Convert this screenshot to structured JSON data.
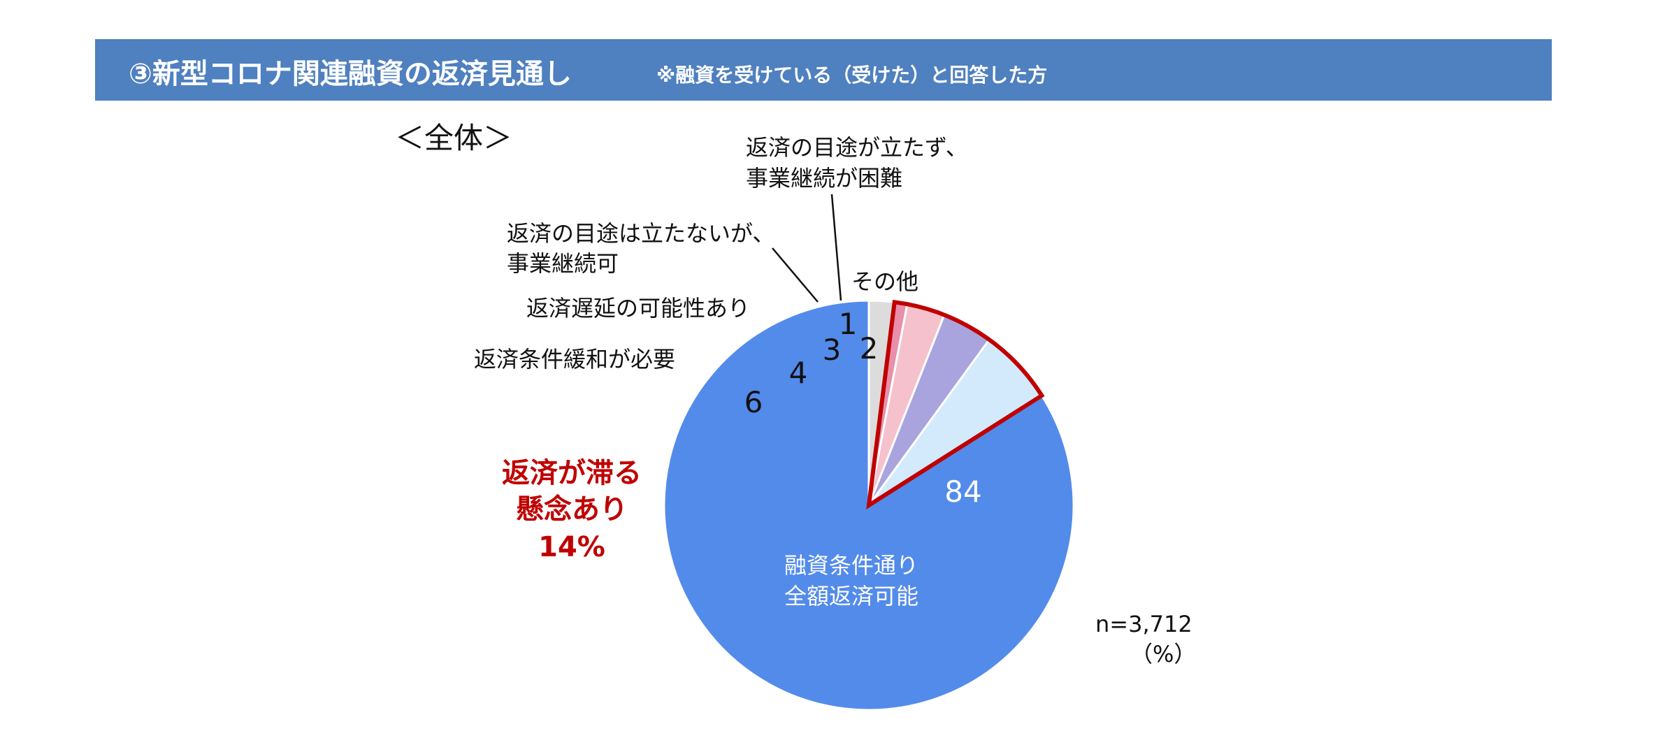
{
  "header": {
    "title": "③新型コロナ関連融資の返済見通し",
    "note": "※融資を受けている（受けた）と回答した方",
    "bg_color": "#4f80bf"
  },
  "chart_data": {
    "type": "pie",
    "subtitle": "＜全体＞",
    "unit": "（%）",
    "sample_size": "n=3,712",
    "slices": [
      {
        "label_lines": [
          "融資条件通り",
          "全額返済可能"
        ],
        "value": 84,
        "color": "#538bea"
      },
      {
        "label_lines": [
          "返済条件緩和が必要"
        ],
        "value": 6,
        "color": "#d2eafc"
      },
      {
        "label_lines": [
          "返済遅延の可能性あり"
        ],
        "value": 4,
        "color": "#a9a4de"
      },
      {
        "label_lines": [
          "返済の目途は立たないが、",
          "事業継続可"
        ],
        "value": 3,
        "color": "#f5c1cd"
      },
      {
        "label_lines": [
          "返済の目途が立たず、",
          "事業継続が困難"
        ],
        "value": 1,
        "color": "#e88faa"
      },
      {
        "label_lines": [
          "その他"
        ],
        "value": 2,
        "color": "#dcdcdc"
      }
    ],
    "highlight": {
      "label_lines": [
        "返済が滞る",
        "懸念あり",
        "14%"
      ],
      "color": "#c00000"
    }
  }
}
